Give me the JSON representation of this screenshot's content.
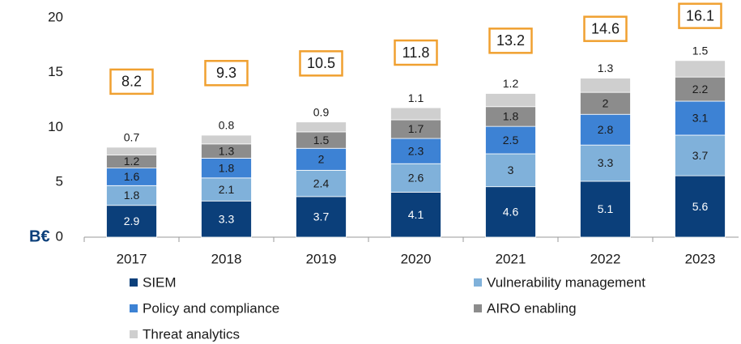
{
  "chart_data": {
    "type": "stacked_bar",
    "y_label": "B€",
    "categories": [
      "2017",
      "2018",
      "2019",
      "2020",
      "2021",
      "2022",
      "2023"
    ],
    "series": [
      {
        "name": "SIEM",
        "color": "#0b3f7a",
        "label_color": "#ffffff",
        "values": [
          2.9,
          3.3,
          3.7,
          4.1,
          4.6,
          5.1,
          5.6
        ]
      },
      {
        "name": "Vulnerability management",
        "color": "#80b1da",
        "label_color": "#1a1a1a",
        "values": [
          1.8,
          2.1,
          2.4,
          2.6,
          3.0,
          3.3,
          3.7
        ]
      },
      {
        "name": "Policy and compliance",
        "color": "#3d82d4",
        "label_color": "#1a1a1a",
        "values": [
          1.6,
          1.8,
          2.0,
          2.3,
          2.5,
          2.8,
          3.1
        ]
      },
      {
        "name": "AIRO enabling",
        "color": "#8c8c8c",
        "label_color": "#1a1a1a",
        "values": [
          1.2,
          1.3,
          1.5,
          1.7,
          1.8,
          2.0,
          2.2
        ]
      },
      {
        "name": "Threat analytics",
        "color": "#cfcfcf",
        "label_color": "#1a1a1a",
        "values": [
          0.7,
          0.8,
          0.9,
          1.1,
          1.2,
          1.3,
          1.5
        ]
      }
    ],
    "totals": [
      8.2,
      9.3,
      10.5,
      11.8,
      13.2,
      14.6,
      16.1
    ],
    "total_box_color": "#f0a030",
    "ylim": [
      0,
      20
    ],
    "yticks": [
      0,
      5,
      10,
      15,
      20
    ]
  }
}
